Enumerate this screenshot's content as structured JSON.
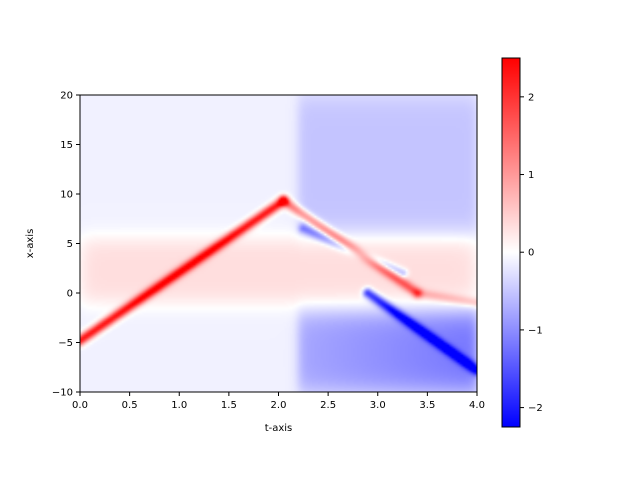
{
  "chart_data": {
    "type": "heatmap",
    "title": "",
    "xlabel": "t-axis",
    "ylabel": "x-axis",
    "xlim": [
      0.0,
      4.0
    ],
    "ylim": [
      -10,
      20
    ],
    "xticks": [
      "0.0",
      "0.5",
      "1.0",
      "1.5",
      "2.0",
      "2.5",
      "3.0",
      "3.5",
      "4.0"
    ],
    "yticks": [
      "−10",
      "−5",
      "0",
      "5",
      "10",
      "15",
      "20"
    ],
    "colorbar": {
      "colormap": "bwr",
      "vmin": -2.25,
      "vmax": 2.5,
      "ticks": [
        "−2",
        "−1",
        "0",
        "1",
        "2"
      ],
      "tick_values": [
        -2,
        -1,
        0,
        1,
        2
      ],
      "low_color": "#0000ff",
      "mid_color": "#ffffff",
      "high_color": "#ff0000"
    },
    "features": [
      {
        "kind": "ridge",
        "sign": "positive",
        "from": [
          0.0,
          -4.8
        ],
        "to": [
          2.05,
          9.3
        ],
        "amplitude": 2.4
      },
      {
        "kind": "ridge",
        "sign": "positive",
        "from": [
          2.05,
          9.3
        ],
        "to": [
          3.4,
          0.0
        ],
        "amplitude": 1.4
      },
      {
        "kind": "ridge",
        "sign": "positive",
        "from": [
          3.4,
          0.0
        ],
        "to": [
          4.0,
          -1.0
        ],
        "amplitude": 0.6
      },
      {
        "kind": "band",
        "sign": "positive",
        "t_range": [
          0.0,
          4.0
        ],
        "x_range": [
          -1.0,
          5.5
        ],
        "amplitude": 0.45
      },
      {
        "kind": "region",
        "sign": "negative",
        "t_range": [
          2.2,
          4.0
        ],
        "x_range": [
          6.0,
          20.0
        ],
        "amplitude": -0.4
      },
      {
        "kind": "region",
        "sign": "negative",
        "t_range": [
          2.2,
          4.0
        ],
        "x_range": [
          -10.0,
          -2.0
        ],
        "amplitude": -1.1
      },
      {
        "kind": "ridge",
        "sign": "negative",
        "from": [
          2.25,
          6.5
        ],
        "to": [
          3.25,
          2.0
        ],
        "amplitude": -0.9
      },
      {
        "kind": "ridge",
        "sign": "negative",
        "from": [
          2.9,
          0.0
        ],
        "to": [
          4.0,
          -7.8
        ],
        "amplitude": -1.9
      }
    ]
  }
}
